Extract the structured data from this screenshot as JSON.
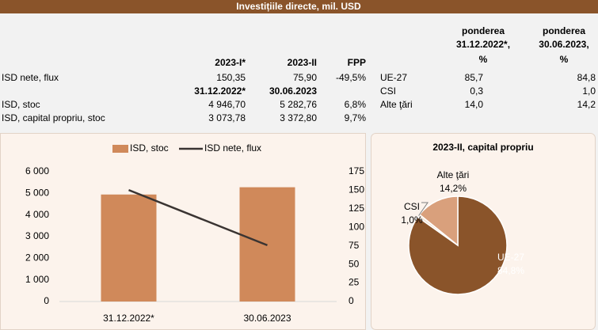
{
  "header": {
    "title": "Investițiile directe, mil. USD"
  },
  "table": {
    "header": [
      "2023-I*",
      "2023-II",
      "FPP"
    ],
    "rows": [
      [
        "ISD nete, flux",
        "150,35",
        "75,90",
        "-49,5%"
      ],
      [
        "ISD, stoc",
        "4 946,70",
        "5 282,76",
        "6,8%"
      ],
      [
        "ISD, capital propriu, stoc",
        "3 073,78",
        "3 372,80",
        "9,7%"
      ]
    ],
    "subheader": [
      "31.12.2022*",
      "30.06.2023"
    ]
  },
  "share_table": {
    "header": [
      [
        "ponderea",
        "31.12.2022*,",
        "%"
      ],
      [
        "ponderea",
        "30.06.2023,",
        "%"
      ]
    ],
    "rows": [
      [
        "UE-27",
        "85,7",
        "84,8"
      ],
      [
        "CSI",
        "0,3",
        "1,0"
      ],
      [
        "Alte ţări",
        "14,0",
        "14,2"
      ]
    ]
  },
  "chart_data": [
    {
      "type": "bar",
      "categories": [
        "31.12.2022*",
        "30.06.2023"
      ],
      "series": [
        {
          "name": "ISD, stoc",
          "type": "bar",
          "color": "#d0895a",
          "values": [
            4946.7,
            5282.76
          ]
        },
        {
          "name": "ISD nete, flux",
          "type": "line",
          "axis": "y2",
          "color": "#3a3432",
          "values": [
            150.35,
            75.9
          ]
        }
      ],
      "ylim": [
        0,
        6000
      ],
      "yticks": [
        0,
        {
          "value": 1000,
          "label": "1 000"
        },
        {
          "value": 2000,
          "label": "2 000"
        },
        {
          "value": 3000,
          "label": "3 000"
        },
        {
          "value": 4000,
          "label": "4 000"
        },
        {
          "value": 5000,
          "label": "5 000"
        },
        {
          "value": 6000,
          "label": "6 000"
        }
      ],
      "y2lim": [
        0,
        175
      ],
      "y2ticks": [
        0,
        25,
        50,
        75,
        100,
        125,
        150,
        175
      ],
      "legend": "top"
    },
    {
      "type": "pie",
      "title": "2023-II, capital propriu",
      "categories": [
        "UE-27",
        "CSI",
        "Alte ţări"
      ],
      "values": [
        84.8,
        1.0,
        14.2
      ],
      "value_labels": [
        "84,8%",
        "1,0%",
        "14,2%"
      ],
      "colors": [
        "#8a542a",
        "#f3e4d6",
        "#d9a07c"
      ]
    }
  ]
}
